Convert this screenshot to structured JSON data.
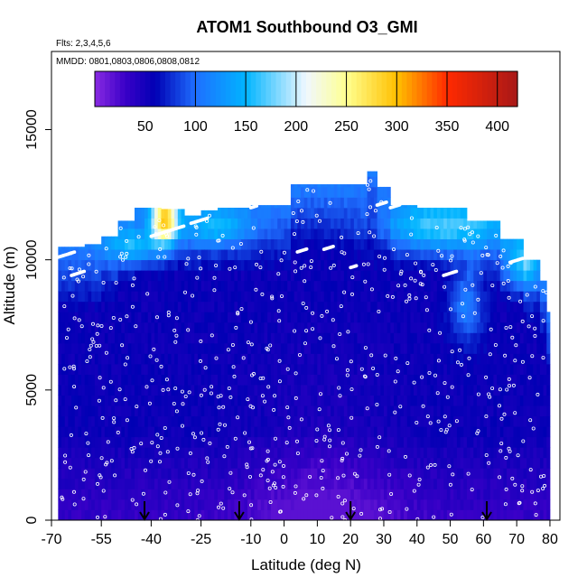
{
  "chart_data": {
    "type": "heatmap",
    "title": "ATOM1 Southbound O3_GMI",
    "subtitle_flights": "Flts: 2,3,4,5,6",
    "subtitle_dates": "MMDD: 0801,0803,0806,0808,0812",
    "xlabel": "Latitude (deg N)",
    "ylabel": "Altitude (m)",
    "xlim": [
      -70,
      83
    ],
    "ylim": [
      0,
      18000
    ],
    "x_ticks": [
      -70,
      -55,
      -40,
      -25,
      -10,
      0,
      10,
      20,
      30,
      40,
      50,
      60,
      70,
      80
    ],
    "x_tick_labels": [
      "-70",
      "-55",
      "-40",
      "-25",
      "-10",
      "0",
      "10",
      "20",
      "30",
      "40",
      "50",
      "60",
      "70",
      "80"
    ],
    "y_ticks": [
      0,
      5000,
      10000,
      15000
    ],
    "y_tick_labels": [
      "0",
      "5000",
      "10000",
      "15000"
    ],
    "colorbar": {
      "range": [
        0,
        420
      ],
      "ticks": [
        50,
        100,
        150,
        200,
        250,
        300,
        350,
        400
      ],
      "tick_labels": [
        "50",
        "100",
        "150",
        "200",
        "250",
        "300",
        "350",
        "400"
      ],
      "color_stops": [
        {
          "v": 0,
          "c": "#8a2be2"
        },
        {
          "v": 30,
          "c": "#3a00c8"
        },
        {
          "v": 60,
          "c": "#0000b4"
        },
        {
          "v": 100,
          "c": "#1f6fff"
        },
        {
          "v": 150,
          "c": "#00b4ff"
        },
        {
          "v": 210,
          "c": "#f0f8ff"
        },
        {
          "v": 250,
          "c": "#ffff90"
        },
        {
          "v": 300,
          "c": "#ffc000"
        },
        {
          "v": 350,
          "c": "#ff2a00"
        },
        {
          "v": 420,
          "c": "#a81818"
        }
      ]
    },
    "top_profile_m": [
      [
        -68,
        10500
      ],
      [
        -60,
        10600
      ],
      [
        -55,
        10900
      ],
      [
        -50,
        11500
      ],
      [
        -45,
        12000
      ],
      [
        -37,
        11950
      ],
      [
        -30,
        11700
      ],
      [
        -25,
        11900
      ],
      [
        -20,
        12000
      ],
      [
        -10,
        12100
      ],
      [
        0,
        12100
      ],
      [
        2,
        12900
      ],
      [
        20,
        12900
      ],
      [
        25,
        13400
      ],
      [
        28,
        12800
      ],
      [
        32,
        12100
      ],
      [
        40,
        12000
      ],
      [
        50,
        12000
      ],
      [
        55,
        11500
      ],
      [
        65,
        10800
      ],
      [
        72,
        10000
      ],
      [
        77,
        9200
      ],
      [
        79,
        8000
      ],
      [
        80,
        6100
      ]
    ],
    "ozone_field": {
      "background": 55,
      "surface_min": 18,
      "features": [
        {
          "name": "south_upper_strat",
          "lat": -36,
          "alt": 11500,
          "slat": 4,
          "salt": 900,
          "amp": 190
        },
        {
          "name": "south_upper_band",
          "lat": -45,
          "alt": 10500,
          "slat": 8,
          "salt": 700,
          "amp": 70
        },
        {
          "name": "mid_lat_upper",
          "lat": -20,
          "alt": 11200,
          "slat": 10,
          "salt": 700,
          "amp": 60
        },
        {
          "name": "north_upper",
          "lat": 48,
          "alt": 11200,
          "slat": 18,
          "salt": 900,
          "amp": 75
        },
        {
          "name": "north_midlevel",
          "lat": 55,
          "alt": 8300,
          "slat": 5,
          "salt": 1400,
          "amp": 55
        },
        {
          "name": "north_pole_upper",
          "lat": 72,
          "alt": 9800,
          "slat": 5,
          "salt": 900,
          "amp": 70
        }
      ]
    },
    "arrow_markers_lat": [
      -42,
      -13.5,
      20,
      61
    ]
  }
}
